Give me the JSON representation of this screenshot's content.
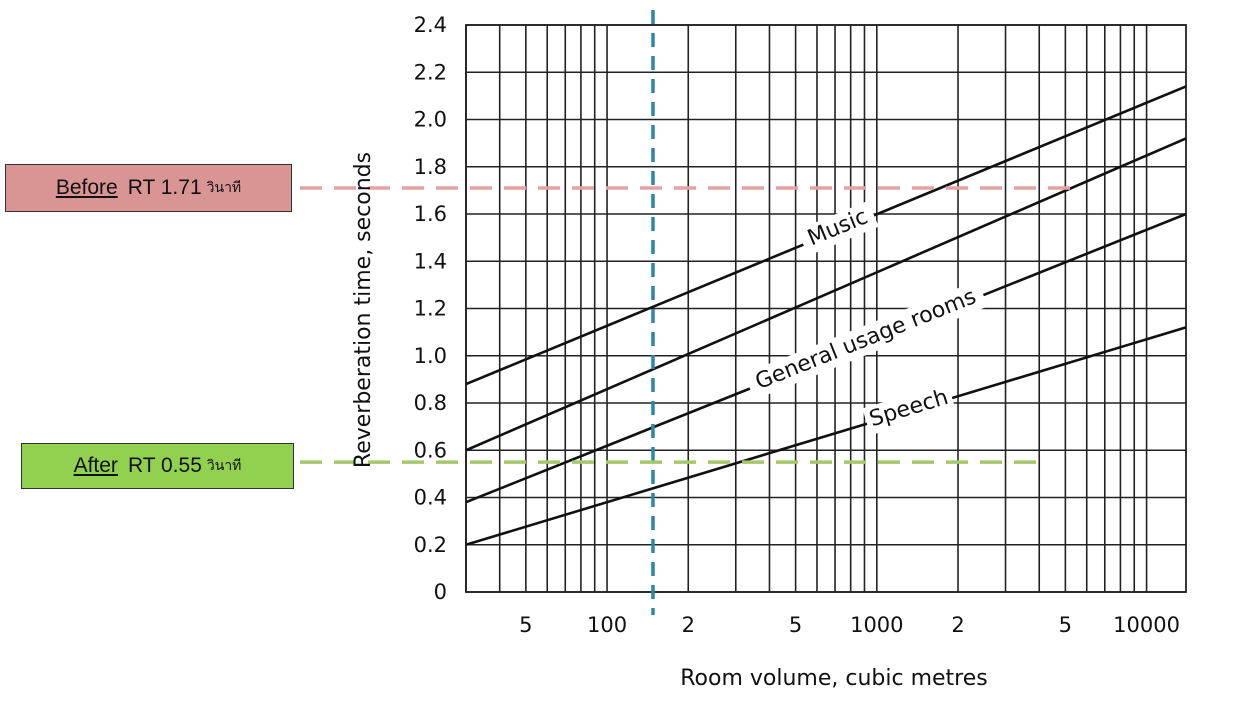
{
  "chart_data": {
    "type": "line",
    "xscale": "log",
    "yscale": "linear",
    "xlim": [
      30,
      14000
    ],
    "ylim": [
      0,
      2.4
    ],
    "grid": true,
    "xlabel": "Room volume, cubic metres",
    "ylabel": "Reverberation time, seconds",
    "x_ticks": [
      {
        "value": 50,
        "label": "5"
      },
      {
        "value": 100,
        "label": "100"
      },
      {
        "value": 200,
        "label": "2"
      },
      {
        "value": 500,
        "label": "5"
      },
      {
        "value": 1000,
        "label": "1000"
      },
      {
        "value": 2000,
        "label": "2"
      },
      {
        "value": 5000,
        "label": "5"
      },
      {
        "value": 10000,
        "label": "10000"
      }
    ],
    "x_gridlines": [
      30,
      40,
      50,
      60,
      70,
      80,
      90,
      100,
      200,
      300,
      400,
      500,
      600,
      700,
      800,
      900,
      1000,
      2000,
      3000,
      4000,
      5000,
      6000,
      7000,
      8000,
      9000,
      10000
    ],
    "y_ticks": [
      0,
      0.2,
      0.4,
      0.6,
      0.8,
      1.0,
      1.2,
      1.4,
      1.6,
      1.8,
      2.0,
      2.2,
      2.4
    ],
    "y_tick_labels": [
      "0",
      "0.2",
      "0.4",
      "0.6",
      "0.8",
      "1.0",
      "1.2",
      "1.4",
      "1.6",
      "1.8",
      "2.0",
      "2.2",
      "2.4"
    ],
    "series": [
      {
        "name": "Music",
        "x": [
          30,
          14000
        ],
        "y": [
          0.88,
          2.14
        ]
      },
      {
        "name": "",
        "x": [
          30,
          14000
        ],
        "y": [
          0.6,
          1.92
        ]
      },
      {
        "name": "General usage rooms",
        "x": [
          30,
          14000
        ],
        "y": [
          0.38,
          1.6
        ]
      },
      {
        "name": "Speech",
        "x": [
          30,
          14000
        ],
        "y": [
          0.2,
          1.12
        ]
      }
    ],
    "reference_lines": [
      {
        "orientation": "vertical",
        "x": 148,
        "color": "#2e86a8"
      },
      {
        "orientation": "horizontal",
        "y": 1.71,
        "color": "#e3a3a3"
      },
      {
        "orientation": "horizontal",
        "y": 0.55,
        "color": "#a5c86a"
      }
    ],
    "annotations": {
      "before": {
        "word": "Before",
        "text": "RT 1.71",
        "unit": "วินาที",
        "value": 1.71,
        "bg": "#d99594"
      },
      "after": {
        "word": "After",
        "text": "RT 0.55",
        "unit": "วินาที",
        "value": 0.55,
        "bg": "#92d050"
      }
    }
  }
}
